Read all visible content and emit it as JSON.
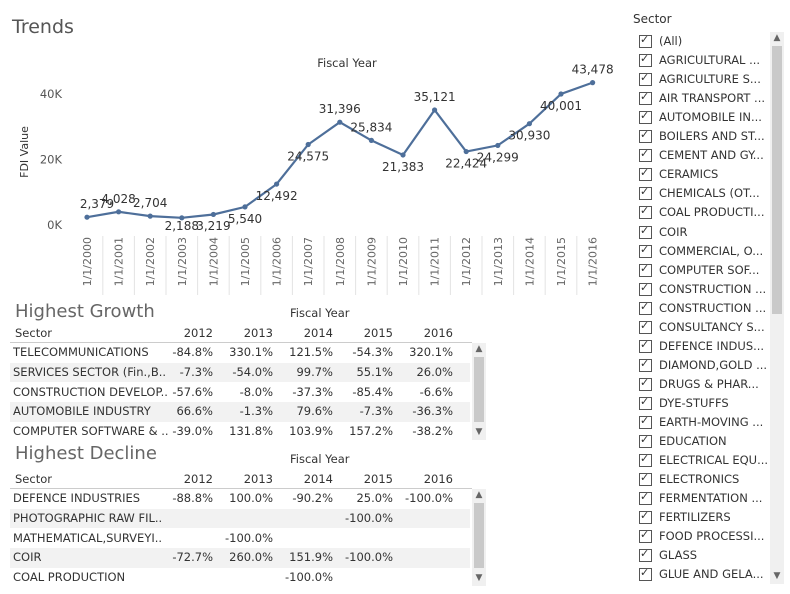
{
  "title": "Trends",
  "chart_data": {
    "type": "line",
    "title": "Fiscal Year",
    "ylabel": "FDI Value",
    "ylim": [
      0,
      45000
    ],
    "yticks": [
      {
        "value": 0,
        "label": "0K"
      },
      {
        "value": 20000,
        "label": "20K"
      },
      {
        "value": 40000,
        "label": "40K"
      }
    ],
    "x": [
      "1/1/2000",
      "1/1/2001",
      "1/1/2002",
      "1/1/2003",
      "1/1/2004",
      "1/1/2005",
      "1/1/2006",
      "1/1/2007",
      "1/1/2008",
      "1/1/2009",
      "1/1/2010",
      "1/1/2011",
      "1/1/2012",
      "1/1/2013",
      "1/1/2014",
      "1/1/2015",
      "1/1/2016"
    ],
    "values": [
      2379,
      4028,
      2704,
      2188,
      3219,
      5540,
      12492,
      24575,
      31396,
      25834,
      21383,
      35121,
      22424,
      24299,
      30930,
      40001,
      43478
    ],
    "data_labels": [
      "2,379",
      "4,028",
      "2,704",
      "2,188",
      "3,219",
      "5,540",
      "12,492",
      "24,575",
      "31,396",
      "25,834",
      "21,383",
      "35,121",
      "22,424",
      "24,299",
      "30,930",
      "40,001",
      "43,478"
    ],
    "color": "#4e6f9a",
    "grid": false
  },
  "growth": {
    "title": "Highest Growth",
    "col_group": "Fiscal Year",
    "sector_header": "Sector",
    "years": [
      "2012",
      "2013",
      "2014",
      "2015",
      "2016"
    ],
    "rows": [
      {
        "sector": "TELECOMMUNICATIONS",
        "v": [
          "-84.8%",
          "330.1%",
          "121.5%",
          "-54.3%",
          "320.1%"
        ]
      },
      {
        "sector": "SERVICES SECTOR (Fin.,B..",
        "v": [
          "-7.3%",
          "-54.0%",
          "99.7%",
          "55.1%",
          "26.0%"
        ]
      },
      {
        "sector": "CONSTRUCTION DEVELOP..",
        "v": [
          "-57.6%",
          "-8.0%",
          "-37.3%",
          "-85.4%",
          "-6.6%"
        ]
      },
      {
        "sector": "AUTOMOBILE INDUSTRY",
        "v": [
          "66.6%",
          "-1.3%",
          "79.6%",
          "-7.3%",
          "-36.3%"
        ]
      },
      {
        "sector": "COMPUTER SOFTWARE & ..",
        "v": [
          "-39.0%",
          "131.8%",
          "103.9%",
          "157.2%",
          "-38.2%"
        ]
      }
    ]
  },
  "decline": {
    "title": "Highest Decline",
    "col_group": "Fiscal Year",
    "sector_header": "Sector",
    "years": [
      "2012",
      "2013",
      "2014",
      "2015",
      "2016"
    ],
    "rows": [
      {
        "sector": "DEFENCE INDUSTRIES",
        "v": [
          "-88.8%",
          "100.0%",
          "-90.2%",
          "25.0%",
          "-100.0%"
        ]
      },
      {
        "sector": "PHOTOGRAPHIC RAW FIL..",
        "v": [
          "",
          "",
          "",
          "-100.0%",
          ""
        ]
      },
      {
        "sector": "MATHEMATICAL,SURVEYI..",
        "v": [
          "",
          "-100.0%",
          "",
          "",
          ""
        ]
      },
      {
        "sector": "COIR",
        "v": [
          "-72.7%",
          "260.0%",
          "151.9%",
          "-100.0%",
          ""
        ]
      },
      {
        "sector": "COAL PRODUCTION",
        "v": [
          "",
          "",
          "-100.0%",
          "",
          ""
        ]
      }
    ]
  },
  "filter": {
    "title": "Sector",
    "items": [
      "(All)",
      "AGRICULTURAL ...",
      "AGRICULTURE S...",
      "AIR TRANSPORT ...",
      "AUTOMOBILE IN...",
      "BOILERS AND ST...",
      "CEMENT AND GY...",
      "CERAMICS",
      "CHEMICALS (OT...",
      "COAL PRODUCTI...",
      "COIR",
      "COMMERCIAL, O...",
      "COMPUTER SOF...",
      "CONSTRUCTION ...",
      "CONSTRUCTION ...",
      "CONSULTANCY S...",
      "DEFENCE INDUS...",
      "DIAMOND,GOLD ...",
      "DRUGS & PHAR...",
      "DYE-STUFFS",
      "EARTH-MOVING ...",
      "EDUCATION",
      "ELECTRICAL EQU...",
      "ELECTRONICS",
      "FERMENTATION ...",
      "FERTILIZERS",
      "FOOD PROCESSI...",
      "GLASS",
      "GLUE AND GELA..."
    ]
  }
}
